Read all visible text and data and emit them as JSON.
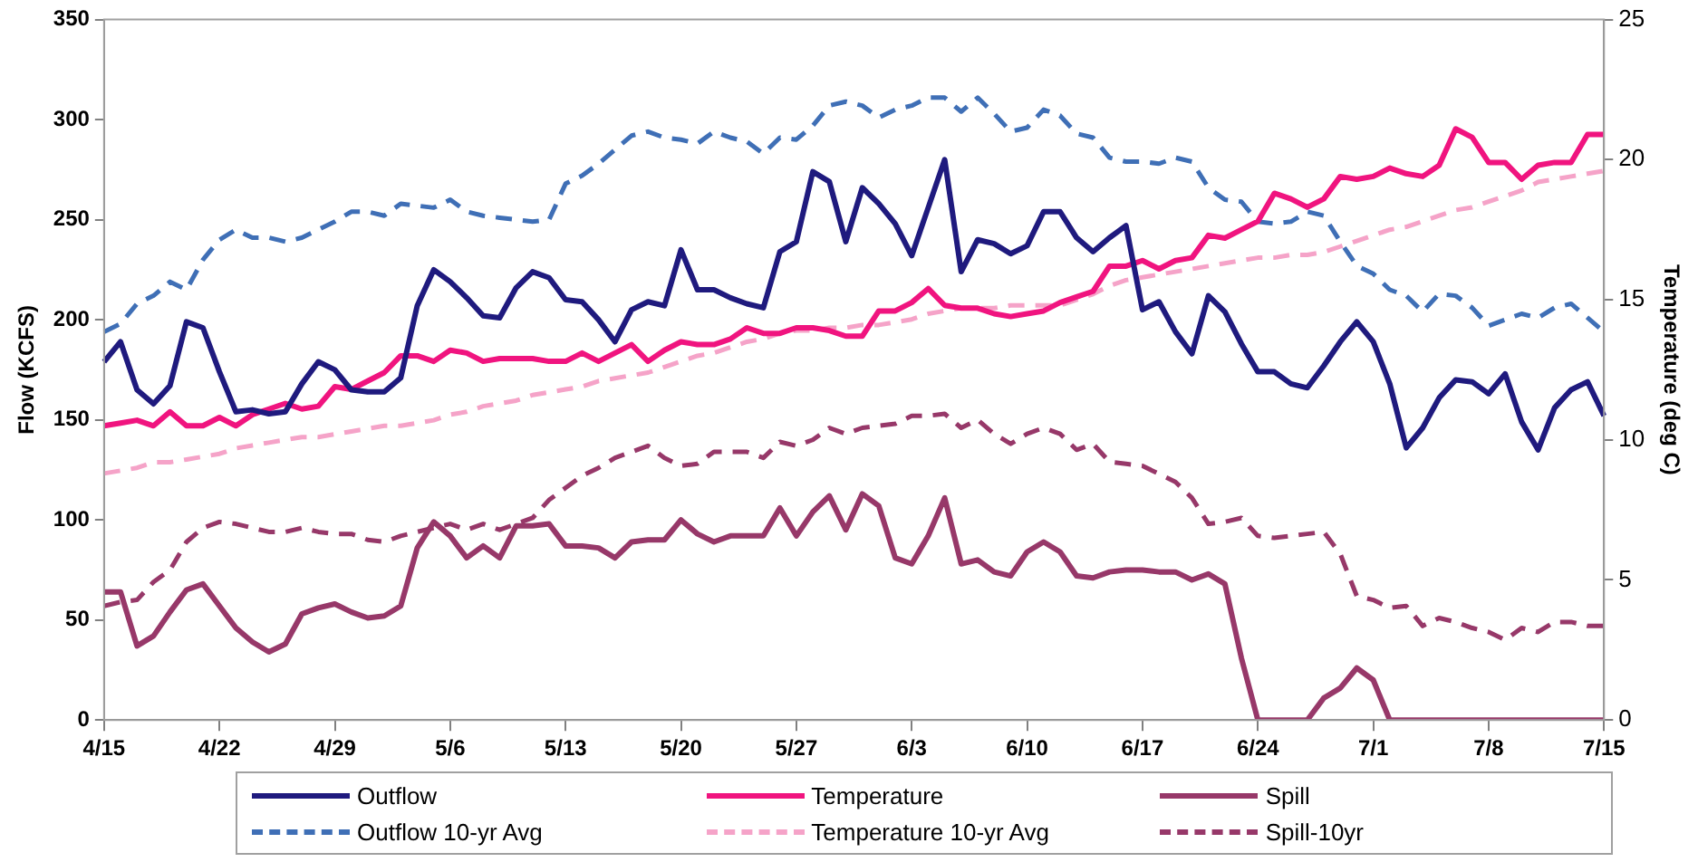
{
  "chart_data": {
    "type": "line",
    "ylabel": "Flow (KCFS)",
    "y2label": "Temperature (deg C)",
    "categories": [
      "4/15",
      null,
      null,
      null,
      null,
      null,
      null,
      "4/22",
      null,
      null,
      null,
      null,
      null,
      null,
      "4/29",
      null,
      null,
      null,
      null,
      null,
      null,
      "5/6",
      null,
      null,
      null,
      null,
      null,
      null,
      "5/13",
      null,
      null,
      null,
      null,
      null,
      null,
      "5/20",
      null,
      null,
      null,
      null,
      null,
      null,
      "5/27",
      null,
      null,
      null,
      null,
      null,
      null,
      "6/3",
      null,
      null,
      null,
      null,
      null,
      null,
      "6/10",
      null,
      null,
      null,
      null,
      null,
      null,
      "6/17",
      null,
      null,
      null,
      null,
      null,
      null,
      "6/24",
      null,
      null,
      null,
      null,
      null,
      null,
      "7/1",
      null,
      null,
      null,
      null,
      null,
      null,
      "7/8",
      null,
      null,
      null,
      null,
      null,
      null,
      "7/15"
    ],
    "ylim": [
      0,
      350
    ],
    "yticks": [
      0,
      50,
      100,
      150,
      200,
      250,
      300,
      350
    ],
    "y2lim": [
      0,
      25
    ],
    "y2ticks": [
      0,
      5,
      10,
      15,
      20,
      25
    ],
    "grid": false,
    "legend": "bottom",
    "marker": "none",
    "series": [
      {
        "name": "Outflow",
        "color": "#1f1a7e",
        "line_style": "solid",
        "values": [
          179,
          189,
          165,
          158,
          167,
          199,
          196,
          174,
          154,
          155,
          153,
          154,
          168,
          179,
          175,
          165,
          164,
          164,
          171,
          207,
          225,
          219,
          211,
          202,
          201,
          216,
          224,
          221,
          210,
          209,
          200,
          189,
          205,
          209,
          207,
          235,
          215,
          215,
          211,
          208,
          206,
          234,
          239,
          274,
          269,
          239,
          266,
          258,
          248,
          232,
          256,
          280,
          224,
          240,
          238,
          233,
          237,
          254,
          254,
          241,
          234,
          241,
          247,
          205,
          209,
          194,
          183,
          212,
          204,
          188,
          174,
          174,
          168,
          166,
          177,
          189,
          199,
          189,
          168,
          136,
          146,
          161,
          170,
          169,
          163,
          173,
          149,
          135,
          156,
          165,
          169,
          152
        ]
      },
      {
        "name": "Temperature",
        "color": "#f0147f",
        "line_style": "solid",
        "axis": "y2",
        "values": [
          10.5,
          10.6,
          10.7,
          10.5,
          11.0,
          10.5,
          10.5,
          10.8,
          10.5,
          10.9,
          11.1,
          11.3,
          11.1,
          11.2,
          11.9,
          11.8,
          12.1,
          12.4,
          13.0,
          13.0,
          12.8,
          13.2,
          13.1,
          12.8,
          12.9,
          12.9,
          12.9,
          12.8,
          12.8,
          13.1,
          12.8,
          13.1,
          13.4,
          12.8,
          13.2,
          13.5,
          13.4,
          13.4,
          13.6,
          14.0,
          13.8,
          13.8,
          14.0,
          14.0,
          13.9,
          13.7,
          13.7,
          14.6,
          14.6,
          14.9,
          15.4,
          14.8,
          14.7,
          14.7,
          14.5,
          14.4,
          14.5,
          14.6,
          14.9,
          15.1,
          15.3,
          16.2,
          16.2,
          16.4,
          16.1,
          16.4,
          16.5,
          17.3,
          17.2,
          17.5,
          17.8,
          18.8,
          18.6,
          18.3,
          18.6,
          19.4,
          19.3,
          19.4,
          19.7,
          19.5,
          19.4,
          19.8,
          21.1,
          20.8,
          19.9,
          19.9,
          19.3,
          19.8,
          19.9,
          19.9,
          20.9,
          20.9
        ]
      },
      {
        "name": "Spill",
        "color": "#973869",
        "line_style": "solid",
        "values": [
          64,
          64,
          37,
          42,
          54,
          65,
          68,
          57,
          46,
          39,
          34,
          38,
          53,
          56,
          58,
          54,
          51,
          52,
          57,
          86,
          99,
          92,
          81,
          87,
          81,
          97,
          97,
          98,
          87,
          87,
          86,
          81,
          89,
          90,
          90,
          100,
          93,
          89,
          92,
          92,
          92,
          106,
          92,
          104,
          112,
          95,
          113,
          107,
          81,
          78,
          92,
          111,
          78,
          80,
          74,
          72,
          84,
          89,
          84,
          72,
          71,
          74,
          75,
          75,
          74,
          74,
          70,
          73,
          68,
          31,
          0,
          0,
          0,
          0,
          11,
          16,
          26,
          20,
          0,
          0,
          0,
          0,
          0,
          0,
          0,
          0,
          0,
          0,
          0,
          0,
          0,
          0
        ]
      },
      {
        "name": "Outflow 10-yr Avg",
        "color": "#3f6fb6",
        "line_style": "dashed",
        "values": [
          194,
          198,
          208,
          212,
          219,
          215,
          230,
          240,
          245,
          241,
          241,
          239,
          241,
          245,
          249,
          254,
          254,
          252,
          258,
          257,
          256,
          260,
          254,
          252,
          251,
          250,
          249,
          250,
          268,
          272,
          278,
          285,
          292,
          294,
          291,
          290,
          288,
          294,
          291,
          289,
          283,
          291,
          290,
          297,
          307,
          309,
          307,
          301,
          305,
          307,
          311,
          311,
          304,
          311,
          303,
          294,
          296,
          305,
          302,
          293,
          291,
          281,
          279,
          279,
          278,
          281,
          279,
          266,
          260,
          259,
          249,
          248,
          249,
          254,
          252,
          239,
          227,
          223,
          215,
          212,
          204,
          213,
          212,
          206,
          197,
          200,
          203,
          201,
          206,
          208,
          201,
          194
        ]
      },
      {
        "name": "Temperature 10-yr Avg",
        "color": "#f5a3c8",
        "line_style": "dashed",
        "axis": "y2",
        "values": [
          8.8,
          8.9,
          9.0,
          9.2,
          9.2,
          9.3,
          9.4,
          9.5,
          9.7,
          9.8,
          9.9,
          10.0,
          10.1,
          10.1,
          10.2,
          10.3,
          10.4,
          10.5,
          10.5,
          10.6,
          10.7,
          10.9,
          11.0,
          11.2,
          11.3,
          11.4,
          11.6,
          11.7,
          11.8,
          11.9,
          12.1,
          12.2,
          12.3,
          12.4,
          12.6,
          12.8,
          13.0,
          13.1,
          13.3,
          13.5,
          13.6,
          13.8,
          13.9,
          13.9,
          14.0,
          14.0,
          14.1,
          14.1,
          14.2,
          14.3,
          14.5,
          14.6,
          14.7,
          14.7,
          14.7,
          14.8,
          14.8,
          14.8,
          14.8,
          15.0,
          15.2,
          15.5,
          15.7,
          15.8,
          15.9,
          16.0,
          16.1,
          16.2,
          16.3,
          16.4,
          16.5,
          16.5,
          16.6,
          16.6,
          16.7,
          16.9,
          17.1,
          17.3,
          17.5,
          17.6,
          17.8,
          18.0,
          18.2,
          18.3,
          18.5,
          18.7,
          18.9,
          19.2,
          19.3,
          19.4,
          19.5,
          19.6
        ]
      },
      {
        "name": "Spill-10yr",
        "color": "#973869",
        "line_style": "dashed",
        "values": [
          57,
          59,
          60,
          69,
          75,
          89,
          96,
          99,
          98,
          96,
          94,
          94,
          96,
          94,
          93,
          93,
          90,
          89,
          92,
          94,
          96,
          98,
          95,
          98,
          95,
          98,
          101,
          110,
          116,
          122,
          126,
          131,
          134,
          137,
          131,
          127,
          128,
          134,
          134,
          134,
          131,
          139,
          137,
          140,
          146,
          143,
          146,
          147,
          148,
          152,
          152,
          153,
          146,
          150,
          143,
          138,
          143,
          146,
          143,
          135,
          138,
          129,
          128,
          127,
          123,
          119,
          111,
          98,
          99,
          101,
          92,
          91,
          92,
          93,
          94,
          83,
          62,
          60,
          56,
          57,
          47,
          51,
          49,
          46,
          44,
          40,
          46,
          44,
          49,
          49,
          47,
          47
        ]
      }
    ]
  }
}
